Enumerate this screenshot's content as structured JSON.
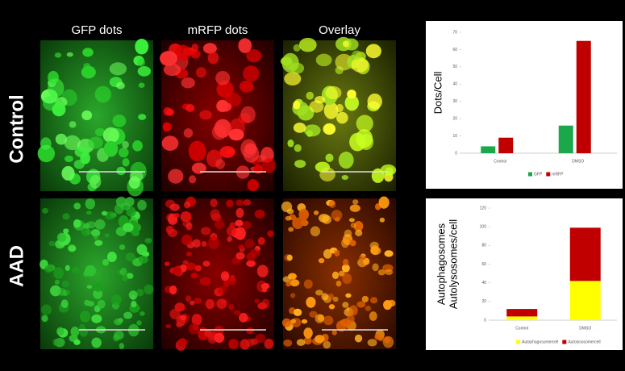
{
  "figure": {
    "column_labels": [
      "GFP dots",
      "mRFP dots",
      "Overlay"
    ],
    "row_labels": [
      "Control",
      "AAD"
    ]
  },
  "chart_data": [
    {
      "type": "bar",
      "ylabel": "Dots/Cell",
      "categories": [
        "Control",
        "DMSO"
      ],
      "series": [
        {
          "name": "GFP",
          "color": "#1aa84a",
          "values": [
            4,
            16
          ]
        },
        {
          "name": "mRFP",
          "color": "#c00000",
          "values": [
            9,
            65
          ]
        }
      ],
      "ylim": [
        0,
        70
      ],
      "yticks": [
        0,
        10,
        20,
        30,
        40,
        50,
        60,
        70
      ]
    },
    {
      "type": "stacked_bar",
      "ylabel": [
        "Autophagosomes",
        "Autolysosomes/cell"
      ],
      "categories": [
        "Control",
        "DMSO"
      ],
      "series": [
        {
          "name": "Autophagosome/cell",
          "color": "#ffff00",
          "values": [
            4,
            42
          ]
        },
        {
          "name": "Autolysosome/cell",
          "color": "#c00000",
          "values": [
            8,
            57
          ]
        }
      ],
      "ylim": [
        0,
        120
      ],
      "yticks": [
        0,
        20,
        40,
        60,
        80,
        100,
        120
      ]
    }
  ]
}
